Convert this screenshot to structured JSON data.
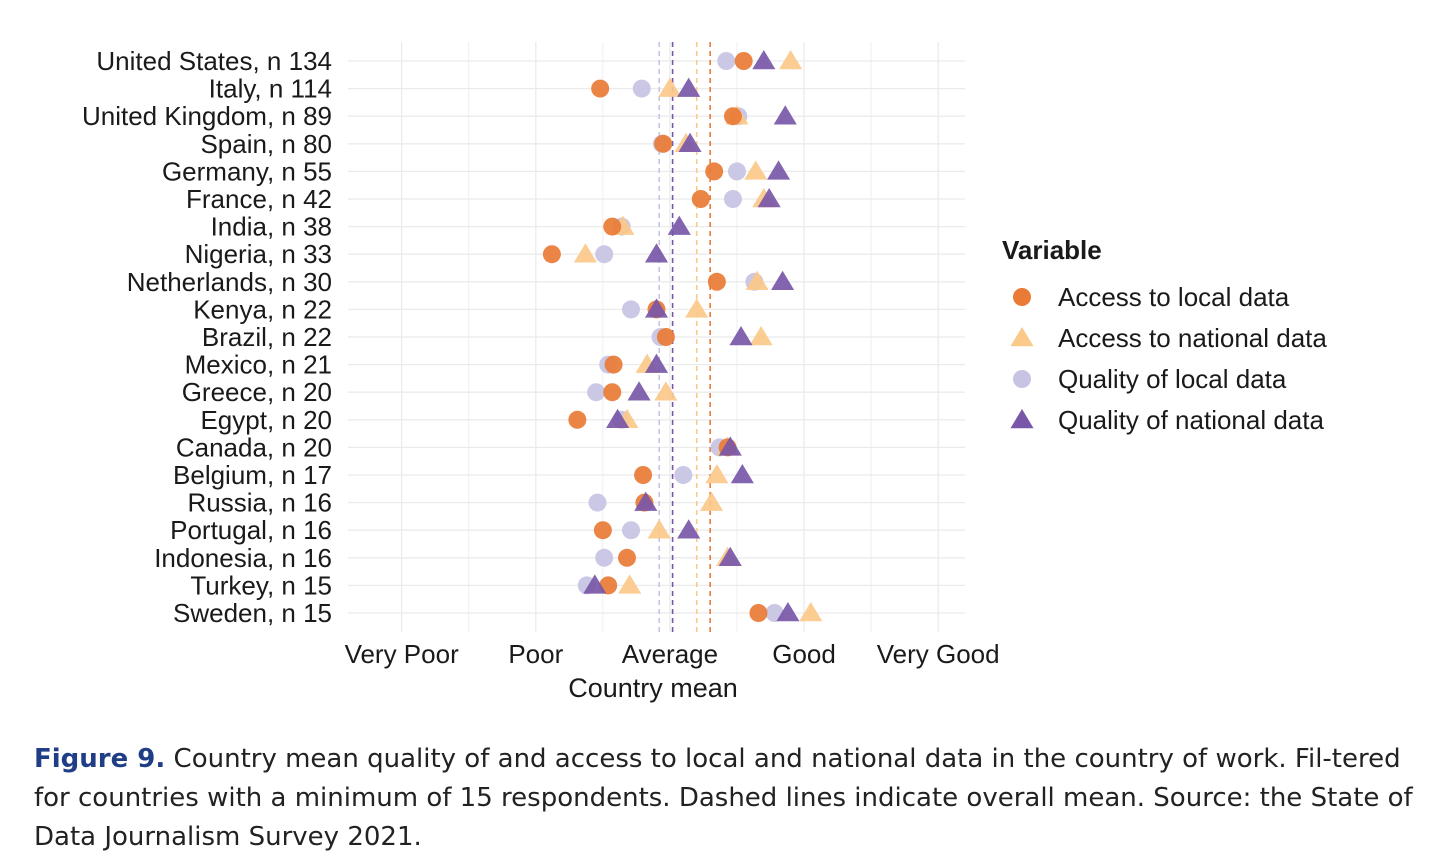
{
  "colors": {
    "access_local": "#e97b36",
    "access_national": "#fbc98a",
    "quality_local": "#c7c3e3",
    "quality_national": "#7857a8",
    "grid": "#ebebeb"
  },
  "chart_data": {
    "type": "scatter",
    "xlabel": "Country mean",
    "ylabel": "",
    "xlim": [
      0.6,
      5.2
    ],
    "x_tick_values": [
      1,
      2,
      3,
      4,
      5
    ],
    "x_tick_labels": [
      "Very Poor",
      "Poor",
      "Average",
      "Good",
      "Very Good"
    ],
    "legend_title": "Variable",
    "legend_position": "right",
    "categories": [
      "United States, n 134",
      "Italy, n 114",
      "United Kingdom, n 89",
      "Spain, n 80",
      "Germany, n 55",
      "France, n 42",
      "India, n 38",
      "Nigeria, n 33",
      "Netherlands, n 30",
      "Kenya, n 22",
      "Brazil, n 22",
      "Mexico, n 21",
      "Greece, n 20",
      "Egypt, n 20",
      "Canada, n 20",
      "Belgium, n 17",
      "Russia, n 16",
      "Portugal, n 16",
      "Indonesia, n 16",
      "Turkey, n 15",
      "Sweden, n 15"
    ],
    "series": [
      {
        "name": "Access to local data",
        "marker": "circle",
        "color_key": "access_local",
        "mean": 3.3,
        "values": [
          3.55,
          2.48,
          3.47,
          2.95,
          3.33,
          3.23,
          2.57,
          2.12,
          3.35,
          2.9,
          2.97,
          2.58,
          2.57,
          2.31,
          3.43,
          2.8,
          2.81,
          2.5,
          2.68,
          2.54,
          3.66
        ]
      },
      {
        "name": "Access to national data",
        "marker": "triangle",
        "color_key": "access_national",
        "mean": 3.2,
        "values": [
          3.9,
          3.0,
          3.5,
          3.12,
          3.64,
          3.7,
          2.65,
          2.37,
          3.65,
          3.2,
          3.68,
          2.83,
          2.97,
          2.68,
          3.43,
          3.35,
          3.31,
          2.92,
          3.43,
          2.7,
          4.05
        ]
      },
      {
        "name": "Quality of local data",
        "marker": "circle",
        "color_key": "quality_local",
        "mean": 2.92,
        "values": [
          3.42,
          2.79,
          3.51,
          2.94,
          3.5,
          3.47,
          2.64,
          2.51,
          3.63,
          2.71,
          2.93,
          2.54,
          2.45,
          2.64,
          3.37,
          3.1,
          2.46,
          2.71,
          2.51,
          2.38,
          3.78
        ]
      },
      {
        "name": "Quality of national data",
        "marker": "triangle",
        "color_key": "quality_national",
        "mean": 3.02,
        "values": [
          3.7,
          3.14,
          3.86,
          3.15,
          3.81,
          3.74,
          3.07,
          2.9,
          3.84,
          2.9,
          3.53,
          2.9,
          2.77,
          2.61,
          3.45,
          3.54,
          2.82,
          3.14,
          3.45,
          2.44,
          3.88
        ]
      }
    ]
  },
  "caption": {
    "label": "Figure 9.",
    "text": " Country mean quality of and access to local and national data in the country of work. Fil-tered for countries with a minimum of 15 respondents. Dashed lines indicate overall mean. Source: the State of Data Journalism Survey 2021."
  }
}
